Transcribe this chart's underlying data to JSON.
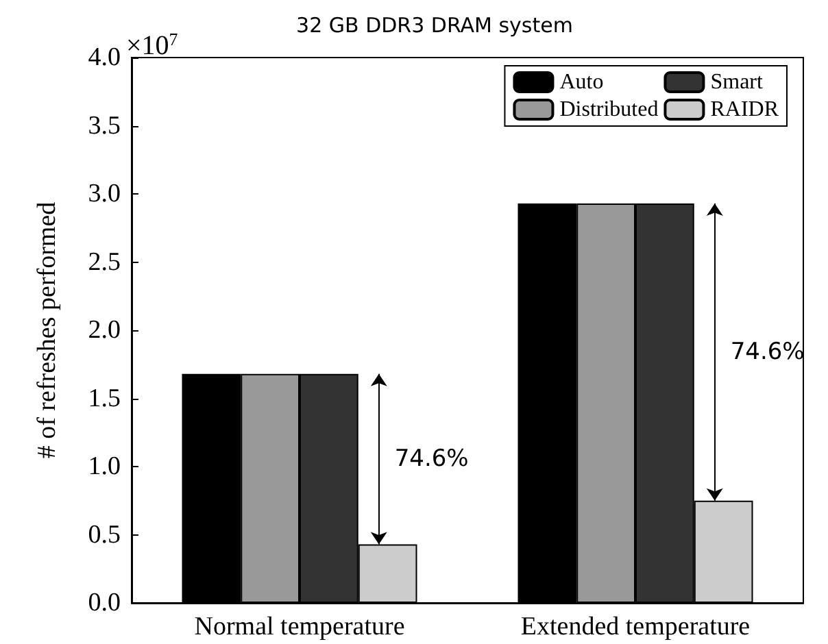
{
  "chart_data": {
    "type": "bar",
    "title": "32 GB DDR3 DRAM system",
    "ylabel": "# of refreshes performed",
    "categories": [
      "Normal temperature",
      "Extended temperature"
    ],
    "series": [
      {
        "name": "Auto",
        "color": "#000000",
        "values": [
          1.68,
          2.93
        ]
      },
      {
        "name": "Distributed",
        "color": "#999999",
        "values": [
          1.68,
          2.93
        ]
      },
      {
        "name": "Smart",
        "color": "#333333",
        "values": [
          1.68,
          2.93
        ]
      },
      {
        "name": "RAIDR",
        "color": "#cccccc",
        "values": [
          0.43,
          0.75
        ]
      }
    ],
    "ylim": [
      0,
      4
    ],
    "yticks": [
      {
        "value": 0,
        "label": "0.0"
      },
      {
        "value": 0.5,
        "label": "0.5"
      },
      {
        "value": 1,
        "label": "1.0"
      },
      {
        "value": 1.5,
        "label": "1.5"
      },
      {
        "value": 2,
        "label": "2.0"
      },
      {
        "value": 2.5,
        "label": "2.5"
      },
      {
        "value": 3,
        "label": "3.0"
      },
      {
        "value": 3.5,
        "label": "3.5"
      },
      {
        "value": 4,
        "label": "4.0"
      }
    ],
    "annotations": [
      "×10$^{7}$",
      "74.6%",
      "74.6%"
    ],
    "legend": "top right",
    "grid": false
  }
}
